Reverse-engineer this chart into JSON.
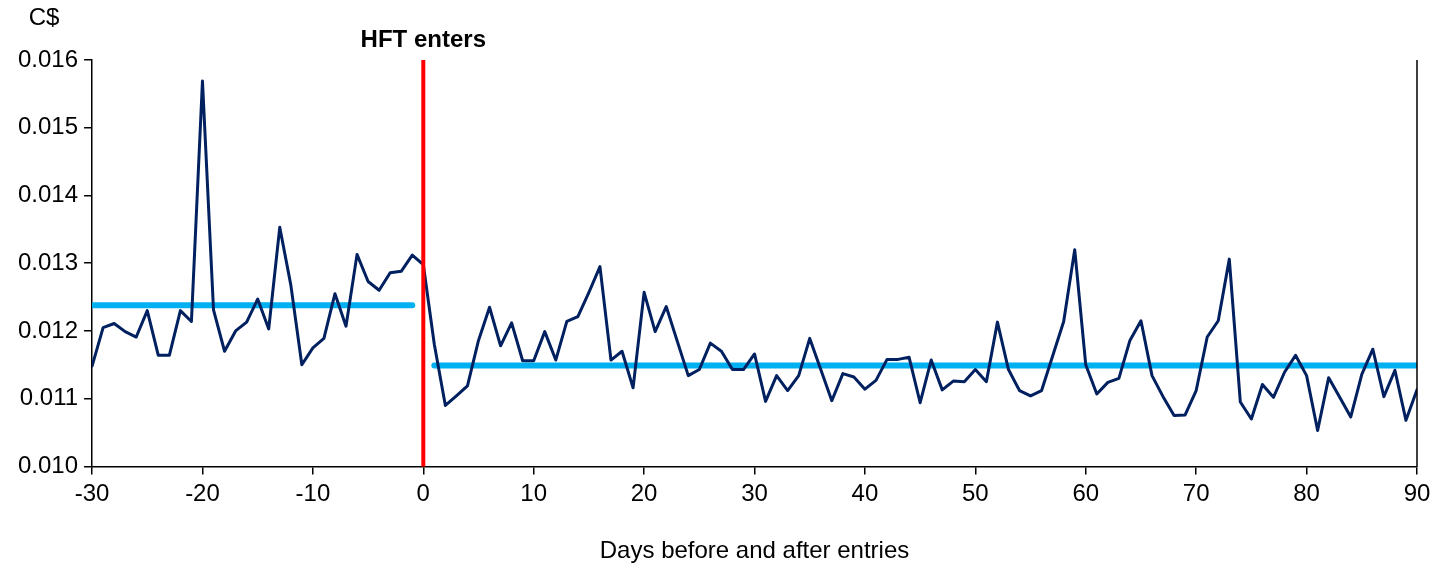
{
  "chart_data": {
    "type": "line",
    "ylabel": "C$",
    "xlabel": "Days before and after entries",
    "xlim": [
      -30,
      90
    ],
    "xticks": [
      -30,
      -20,
      -10,
      0,
      10,
      20,
      30,
      40,
      50,
      60,
      70,
      80,
      90
    ],
    "ylim": [
      0.01,
      0.016
    ],
    "yticks": [
      {
        "value": 0.01,
        "label": "0.010"
      },
      {
        "value": 0.011,
        "label": "0.011"
      },
      {
        "value": 0.012,
        "label": "0.012"
      },
      {
        "value": 0.013,
        "label": "0.013"
      },
      {
        "value": 0.014,
        "label": "0.014"
      },
      {
        "value": 0.015,
        "label": "0.015"
      },
      {
        "value": 0.016,
        "label": "0.016"
      }
    ],
    "grid": false,
    "legend": false,
    "marker": "none",
    "line_style": "solid",
    "series": [
      {
        "type": "line",
        "color": "#00b0f0",
        "x": [
          -30,
          -1
        ],
        "values": [
          0.01238,
          0.01238
        ]
      },
      {
        "type": "line",
        "color": "#00b0f0",
        "x": [
          1,
          90
        ],
        "values": [
          0.01149,
          0.01149
        ]
      },
      {
        "type": "line",
        "color": "#002060",
        "x": [
          -30,
          -29,
          -28,
          -27,
          -26,
          -25,
          -24,
          -23,
          -22,
          -21,
          -20,
          -19,
          -18,
          -17,
          -16,
          -15,
          -14,
          -13,
          -12,
          -11,
          -10,
          -9,
          -8,
          -7,
          -6,
          -5,
          -4,
          -3,
          -2,
          -1,
          0,
          1,
          2,
          3,
          4,
          5,
          6,
          7,
          8,
          9,
          10,
          11,
          12,
          13,
          14,
          15,
          16,
          17,
          18,
          19,
          20,
          21,
          22,
          23,
          24,
          25,
          26,
          27,
          28,
          29,
          30,
          31,
          32,
          33,
          34,
          35,
          36,
          37,
          38,
          39,
          40,
          41,
          42,
          43,
          44,
          45,
          46,
          47,
          48,
          49,
          50,
          51,
          52,
          53,
          54,
          55,
          56,
          57,
          58,
          59,
          60,
          61,
          62,
          63,
          64,
          65,
          66,
          67,
          68,
          69,
          70,
          71,
          72,
          73,
          74,
          75,
          76,
          77,
          78,
          79,
          80,
          81,
          82,
          83,
          84,
          85,
          86,
          87,
          88,
          89,
          90
        ],
        "values": [
          0.01148,
          0.01205,
          0.01211,
          0.01199,
          0.01191,
          0.0123,
          0.01164,
          0.01164,
          0.0123,
          0.01214,
          0.01569,
          0.01231,
          0.0117,
          0.012,
          0.01213,
          0.01247,
          0.01203,
          0.01353,
          0.01268,
          0.0115,
          0.01175,
          0.01189,
          0.01255,
          0.01207,
          0.01313,
          0.01273,
          0.0126,
          0.01286,
          0.01288,
          0.01312,
          0.01298,
          0.0118,
          0.0109,
          0.01104,
          0.01119,
          0.01186,
          0.01235,
          0.01178,
          0.01212,
          0.01156,
          0.01156,
          0.01199,
          0.01157,
          0.01214,
          0.01221,
          0.01257,
          0.01295,
          0.01157,
          0.0117,
          0.01116,
          0.01257,
          0.01199,
          0.01236,
          0.01185,
          0.01134,
          0.01143,
          0.01182,
          0.0117,
          0.01143,
          0.01143,
          0.01166,
          0.01096,
          0.01134,
          0.01112,
          0.01134,
          0.01189,
          0.01143,
          0.01097,
          0.01137,
          0.01132,
          0.01114,
          0.01127,
          0.01158,
          0.01158,
          0.01161,
          0.01094,
          0.01157,
          0.01113,
          0.01126,
          0.01125,
          0.01143,
          0.01125,
          0.01213,
          0.01143,
          0.01112,
          0.01104,
          0.01112,
          0.01163,
          0.01214,
          0.0132,
          0.0115,
          0.01107,
          0.01124,
          0.0113,
          0.01186,
          0.01215,
          0.01134,
          0.01103,
          0.01075,
          0.01076,
          0.01112,
          0.01191,
          0.01215,
          0.01306,
          0.01095,
          0.0107,
          0.01121,
          0.01102,
          0.01139,
          0.01164,
          0.01134,
          0.01053,
          0.01131,
          0.01102,
          0.01073,
          0.01136,
          0.01173,
          0.01103,
          0.01142,
          0.01068,
          0.01113
        ]
      }
    ],
    "ref_lines": [
      {
        "axis": "x",
        "value": 0,
        "label": "HFT enters",
        "color": "#ff0000"
      }
    ]
  }
}
